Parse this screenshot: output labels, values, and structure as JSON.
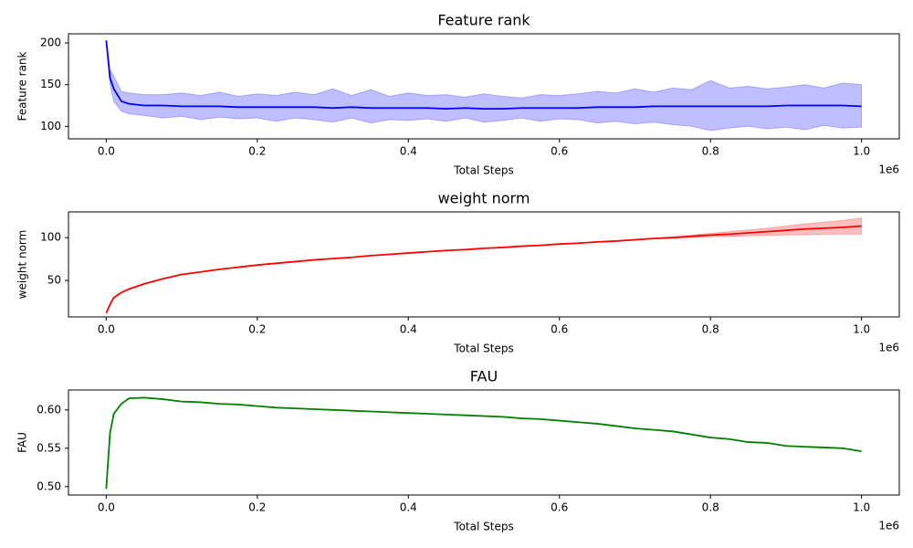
{
  "chart_data": [
    {
      "type": "line",
      "title": "Feature rank",
      "xlabel": "Total Steps",
      "ylabel": "Feature rank",
      "x_offset_label": "1e6",
      "x": [
        0,
        0.005,
        0.01,
        0.02,
        0.03,
        0.05,
        0.075,
        0.1,
        0.125,
        0.15,
        0.175,
        0.2,
        0.225,
        0.25,
        0.275,
        0.3,
        0.325,
        0.35,
        0.375,
        0.4,
        0.425,
        0.45,
        0.475,
        0.5,
        0.525,
        0.55,
        0.575,
        0.6,
        0.625,
        0.65,
        0.675,
        0.7,
        0.725,
        0.75,
        0.775,
        0.8,
        0.825,
        0.85,
        0.875,
        0.9,
        0.925,
        0.95,
        0.975,
        1.0
      ],
      "series": [
        {
          "color": "blue",
          "values": [
            203,
            158,
            145,
            130,
            127,
            125,
            125,
            124,
            124,
            124,
            123,
            123,
            123,
            123,
            123,
            122,
            123,
            122,
            122,
            122,
            122,
            121,
            122,
            121,
            121,
            122,
            122,
            122,
            122,
            123,
            123,
            123,
            124,
            124,
            124,
            124,
            124,
            124,
            124,
            125,
            125,
            125,
            125,
            124
          ],
          "lower": [
            203,
            150,
            130,
            118,
            115,
            113,
            110,
            112,
            108,
            111,
            109,
            110,
            106,
            110,
            108,
            105,
            110,
            104,
            108,
            107,
            109,
            106,
            110,
            105,
            107,
            110,
            106,
            109,
            108,
            104,
            106,
            103,
            105,
            102,
            100,
            95,
            98,
            100,
            97,
            99,
            96,
            101,
            98,
            99
          ],
          "upper": [
            203,
            168,
            160,
            142,
            140,
            138,
            138,
            140,
            137,
            141,
            136,
            139,
            137,
            141,
            138,
            145,
            137,
            144,
            136,
            140,
            137,
            138,
            135,
            139,
            136,
            134,
            138,
            137,
            139,
            142,
            140,
            145,
            141,
            146,
            144,
            155,
            146,
            148,
            145,
            147,
            150,
            146,
            152,
            150
          ]
        }
      ],
      "xlim": [
        -0.05,
        1.05
      ],
      "xticks": [
        {
          "value": 0,
          "label": "0.0"
        },
        0.2,
        0.4,
        0.6,
        0.8,
        {
          "value": 1,
          "label": "1.0"
        }
      ],
      "ylim": [
        85,
        211
      ],
      "yticks": [
        100,
        150,
        200
      ]
    },
    {
      "type": "line",
      "title": "weight norm",
      "xlabel": "Total Steps",
      "ylabel": "weight norm",
      "x_offset_label": "1e6",
      "x": [
        0,
        0.005,
        0.01,
        0.02,
        0.03,
        0.05,
        0.075,
        0.1,
        0.125,
        0.15,
        0.175,
        0.2,
        0.225,
        0.25,
        0.275,
        0.3,
        0.325,
        0.35,
        0.375,
        0.4,
        0.425,
        0.45,
        0.475,
        0.5,
        0.525,
        0.55,
        0.575,
        0.6,
        0.625,
        0.65,
        0.675,
        0.7,
        0.725,
        0.75,
        0.775,
        0.8,
        0.825,
        0.85,
        0.875,
        0.9,
        0.925,
        0.95,
        0.975,
        1.0
      ],
      "series": [
        {
          "color": "red",
          "values": [
            12,
            22,
            30,
            36,
            40,
            46,
            52,
            57,
            60,
            63,
            65.5,
            68,
            70,
            72,
            74,
            75.5,
            77,
            79,
            80.5,
            82,
            83.5,
            85,
            86,
            87.5,
            88.5,
            90,
            91,
            92.5,
            93.5,
            95,
            96,
            97.5,
            99,
            100,
            101.5,
            103,
            104,
            105.5,
            107,
            108.5,
            110,
            111,
            112,
            113.5
          ],
          "lower": [
            12,
            22,
            30,
            36,
            40,
            46,
            52,
            57,
            60,
            63,
            65.5,
            68,
            70,
            72,
            74,
            75.5,
            77,
            79,
            80.5,
            82,
            83.5,
            85,
            86,
            87.5,
            88.5,
            90,
            91,
            92.5,
            93.5,
            95,
            96,
            97.5,
            99,
            99,
            100,
            101,
            101.5,
            102,
            102.5,
            103,
            103.5,
            104,
            104,
            104
          ],
          "upper": [
            12,
            22,
            30,
            36,
            40,
            46,
            52,
            57,
            60,
            63,
            65.5,
            68,
            70,
            72,
            74,
            75.5,
            77,
            79,
            80.5,
            82,
            83.5,
            85,
            86,
            87.5,
            88.5,
            90,
            91,
            92.5,
            93.5,
            95,
            96,
            97.5,
            99,
            101,
            103,
            105,
            107,
            109,
            111,
            113.5,
            116,
            118,
            120,
            123
          ]
        }
      ],
      "xlim": [
        -0.05,
        1.05
      ],
      "xticks": [
        {
          "value": 0,
          "label": "0.0"
        },
        0.2,
        0.4,
        0.6,
        0.8,
        {
          "value": 1,
          "label": "1.0"
        }
      ],
      "ylim": [
        7.5,
        130
      ],
      "yticks": [
        50,
        100
      ]
    },
    {
      "type": "line",
      "title": "FAU",
      "xlabel": "Total Steps",
      "ylabel": "FAU",
      "x_offset_label": "1e6",
      "x": [
        0,
        0.005,
        0.01,
        0.02,
        0.03,
        0.05,
        0.075,
        0.1,
        0.125,
        0.15,
        0.175,
        0.2,
        0.225,
        0.25,
        0.275,
        0.3,
        0.325,
        0.35,
        0.375,
        0.4,
        0.425,
        0.45,
        0.475,
        0.5,
        0.525,
        0.55,
        0.575,
        0.6,
        0.625,
        0.65,
        0.675,
        0.7,
        0.725,
        0.75,
        0.775,
        0.8,
        0.825,
        0.85,
        0.875,
        0.9,
        0.925,
        0.95,
        0.975,
        1.0
      ],
      "series": [
        {
          "color": "green",
          "values": [
            0.497,
            0.57,
            0.595,
            0.608,
            0.615,
            0.616,
            0.614,
            0.611,
            0.61,
            0.608,
            0.607,
            0.605,
            0.603,
            0.602,
            0.601,
            0.6,
            0.599,
            0.598,
            0.597,
            0.596,
            0.595,
            0.594,
            0.593,
            0.592,
            0.591,
            0.589,
            0.588,
            0.586,
            0.584,
            0.582,
            0.579,
            0.576,
            0.574,
            0.572,
            0.568,
            0.564,
            0.562,
            0.558,
            0.557,
            0.553,
            0.552,
            0.551,
            0.55,
            0.546
          ]
        }
      ],
      "xlim": [
        -0.05,
        1.05
      ],
      "xticks": [
        {
          "value": 0,
          "label": "0.0"
        },
        0.2,
        0.4,
        0.6,
        0.8,
        {
          "value": 1,
          "label": "1.0"
        }
      ],
      "ylim": [
        0.489,
        0.626
      ],
      "yticks": [
        {
          "value": 0.5,
          "label": "0.50"
        },
        {
          "value": 0.55,
          "label": "0.55"
        },
        {
          "value": 0.6,
          "label": "0.60"
        }
      ]
    }
  ]
}
